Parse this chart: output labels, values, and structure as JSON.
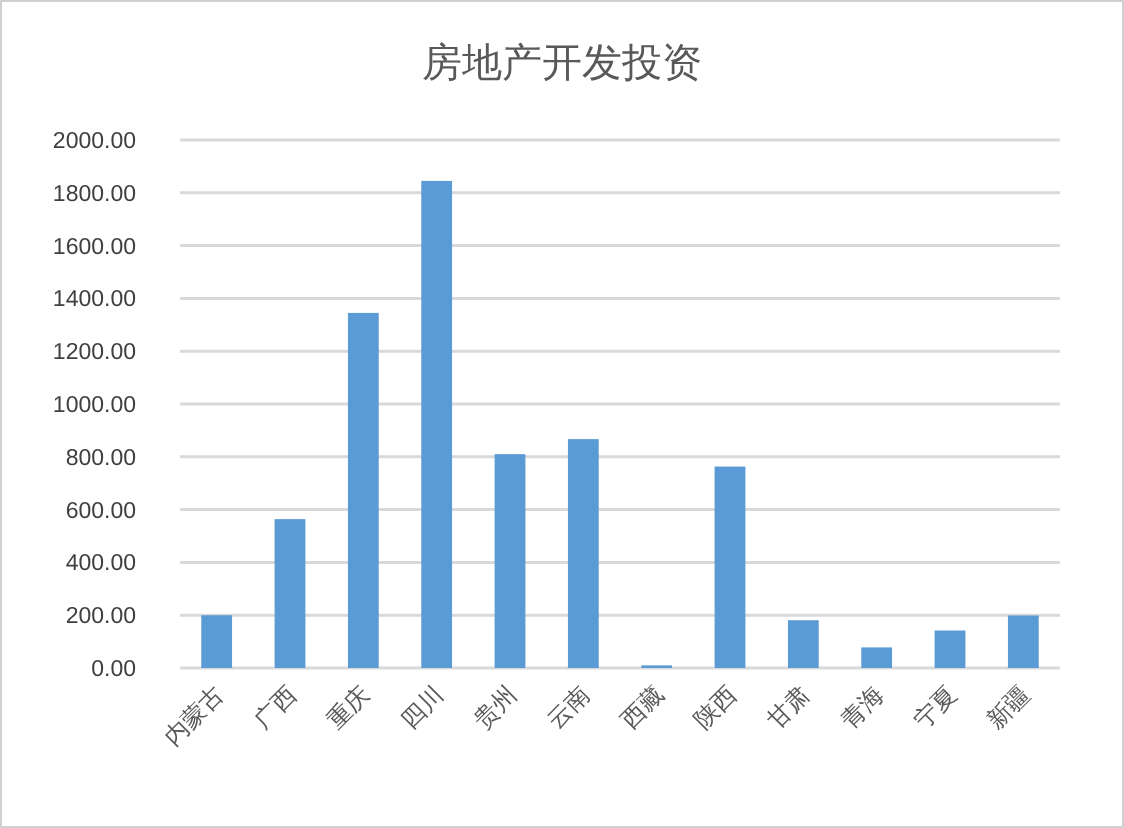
{
  "chart_data": {
    "type": "bar",
    "title": "房地产开发投资",
    "categories": [
      "内蒙古",
      "广西",
      "重庆",
      "四川",
      "贵州",
      "云南",
      "西藏",
      "陕西",
      "甘肃",
      "青海",
      "宁夏",
      "新疆"
    ],
    "values": [
      200,
      564,
      1345,
      1845,
      810,
      867,
      10,
      763,
      181,
      78,
      142,
      199
    ],
    "color": "#5b9bd5",
    "ylim": [
      0,
      2000
    ],
    "yticks": [
      {
        "value": 0,
        "label": "0.00"
      },
      {
        "value": 200,
        "label": "200.00"
      },
      {
        "value": 400,
        "label": "400.00"
      },
      {
        "value": 600,
        "label": "600.00"
      },
      {
        "value": 800,
        "label": "800.00"
      },
      {
        "value": 1000,
        "label": "1000.00"
      },
      {
        "value": 1200,
        "label": "1200.00"
      },
      {
        "value": 1400,
        "label": "1400.00"
      },
      {
        "value": 1600,
        "label": "1600.00"
      },
      {
        "value": 1800,
        "label": "1800.00"
      },
      {
        "value": 2000,
        "label": "2000.00"
      }
    ],
    "grid": "y"
  }
}
